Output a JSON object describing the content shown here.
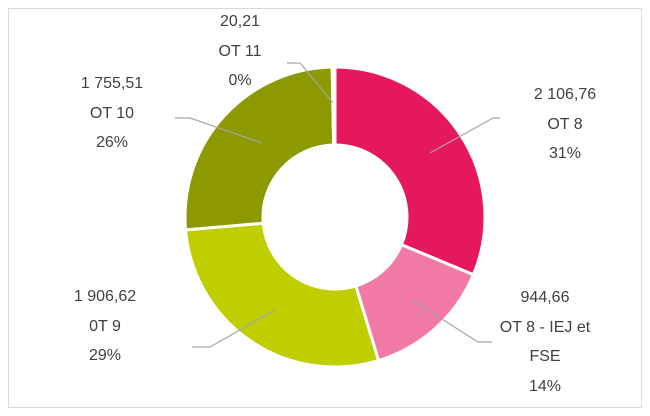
{
  "chart_data": {
    "type": "pie",
    "categories": [
      "OT 8",
      "OT 8 - IEJ et FSE",
      "0T 9",
      "OT 10",
      "OT 11"
    ],
    "values": [
      2106.76,
      944.66,
      1906.62,
      1755.51,
      20.21
    ],
    "value_labels": [
      "2 106,76",
      "944,66",
      "1 906,62",
      "1 755,51",
      "20,21"
    ],
    "percentages": [
      31,
      14,
      29,
      26,
      0
    ],
    "percentage_labels": [
      "31%",
      "14%",
      "29%",
      "26%",
      "0%"
    ],
    "colors": [
      "#e4175f",
      "#f07aa5",
      "#bfce00",
      "#8c9900",
      "#6f7a00"
    ],
    "donut": true
  }
}
